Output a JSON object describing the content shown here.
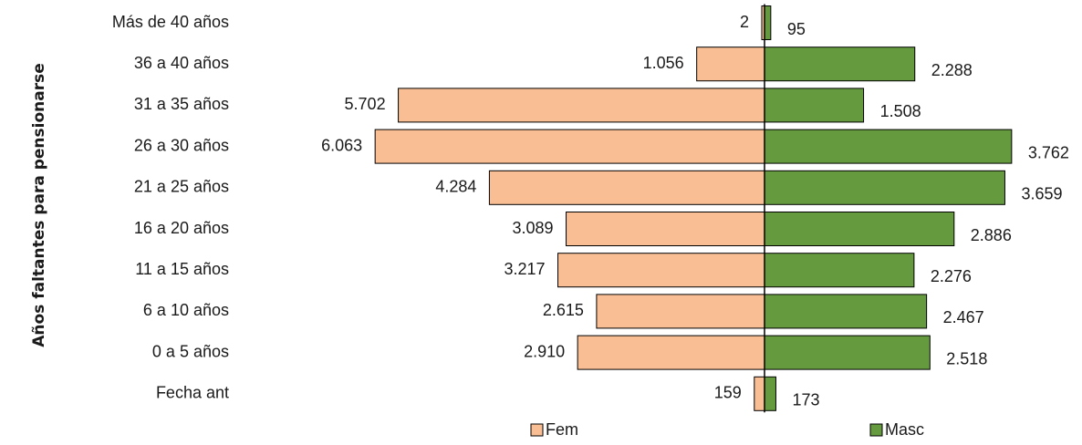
{
  "chart_data": {
    "type": "bar",
    "orientation": "horizontal-diverging",
    "title": "",
    "ylabel": "Años faltantes  para pensionarse",
    "xlabel": "",
    "categories": [
      "Más de 40 años",
      "36 a 40 años",
      "31 a 35 años",
      "26 a 30 años",
      "21 a 25 años",
      "16 a 20 años",
      "11 a 15 años",
      "6 a 10 años",
      "0 a 5 años",
      "Fecha ant"
    ],
    "series": [
      {
        "name": "Fem",
        "color": "#F9BE93",
        "direction": "left",
        "values": [
          2,
          1056,
          5702,
          6063,
          4284,
          3089,
          3217,
          2615,
          2910,
          159
        ],
        "labels": [
          "2",
          "1.056",
          "5.702",
          "6.063",
          "4.284",
          "3.089",
          "3.217",
          "2.615",
          "2.910",
          "159"
        ]
      },
      {
        "name": "Masc",
        "color": "#659B3E",
        "direction": "right",
        "values": [
          95,
          2288,
          1508,
          3762,
          3659,
          2886,
          2276,
          2467,
          2518,
          173
        ],
        "labels": [
          "95",
          "2.288",
          "1.508",
          "3.762",
          "3.659",
          "2.886",
          "2.276",
          "2.467",
          "2.518",
          "173"
        ]
      }
    ],
    "legend_position": "bottom",
    "grid": false
  }
}
